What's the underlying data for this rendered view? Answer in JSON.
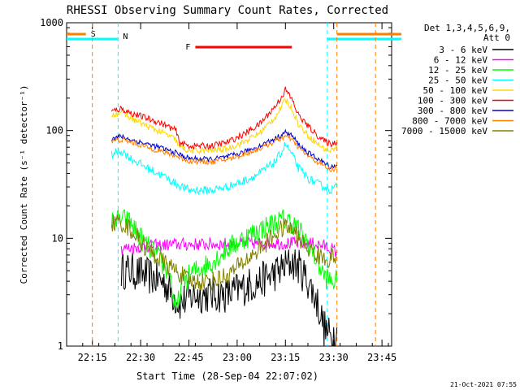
{
  "chart_data": {
    "type": "line",
    "title": "RHESSI Observing Summary Count Rates, Corrected",
    "xlabel": "Start Time (28-Sep-04 22:07:02)",
    "ylabel": "Corrected Count Rate (s⁻¹ detector⁻¹)",
    "yscale": "log",
    "ylim": [
      1,
      1000
    ],
    "xlim_minutes": [
      0,
      101
    ],
    "x_ticks": [
      "22:15",
      "22:30",
      "22:45",
      "23:00",
      "23:15",
      "23:30",
      "23:45"
    ],
    "y_ticks": [
      "1",
      "10",
      "100",
      "1000"
    ],
    "legend_header": [
      "Det 1,3,4,5,6,9,",
      "Att 0"
    ],
    "legend_position": "right",
    "footer": "21-Oct-2021 07:55",
    "flags": [
      {
        "label": "S",
        "color": "#ff7f00",
        "start": "22:07",
        "end": "22:13"
      },
      {
        "label": "N",
        "color": "#00ffff",
        "start": "22:07",
        "end": "22:23"
      },
      {
        "label": "F",
        "color": "#ff0000",
        "start": "22:47",
        "end": "23:17"
      }
    ],
    "vertical_markers": [
      {
        "time": "22:15",
        "color": "#ff7f00"
      },
      {
        "time": "22:23",
        "color": "#00ffff"
      },
      {
        "time": "23:28",
        "color": "#00ffff"
      },
      {
        "time": "23:31",
        "color": "#ff7f00"
      },
      {
        "time": "23:43",
        "color": "#ff7f00"
      }
    ],
    "series": [
      {
        "name": "3 - 6 keV",
        "color": "#000000",
        "points": [
          [
            17,
            5
          ],
          [
            20,
            5
          ],
          [
            25,
            4.5
          ],
          [
            30,
            4
          ],
          [
            35,
            2.5
          ],
          [
            40,
            3
          ],
          [
            45,
            3
          ],
          [
            50,
            3
          ],
          [
            55,
            3.5
          ],
          [
            60,
            4
          ],
          [
            65,
            4.8
          ],
          [
            68,
            5.5
          ],
          [
            70,
            6
          ],
          [
            72,
            5.5
          ],
          [
            75,
            4
          ],
          [
            78,
            2.5
          ],
          [
            80,
            1.5
          ],
          [
            82,
            1.2
          ],
          [
            84,
            1.5
          ]
        ]
      },
      {
        "name": "6 - 12 keV",
        "color": "#ff00ff",
        "points": [
          [
            17,
            8
          ],
          [
            25,
            8.5
          ],
          [
            35,
            8.8
          ],
          [
            45,
            8.8
          ],
          [
            55,
            9
          ],
          [
            65,
            9
          ],
          [
            72,
            9
          ],
          [
            76,
            9
          ],
          [
            80,
            8.5
          ],
          [
            84,
            7.5
          ]
        ]
      },
      {
        "name": "12 - 25 keV",
        "color": "#00ff00",
        "points": [
          [
            14,
            14
          ],
          [
            17,
            15
          ],
          [
            20,
            14
          ],
          [
            22,
            11
          ],
          [
            25,
            8.5
          ],
          [
            28,
            7
          ],
          [
            30,
            5.5
          ],
          [
            32,
            5
          ],
          [
            34,
            2
          ],
          [
            36,
            4
          ],
          [
            40,
            5
          ],
          [
            45,
            6
          ],
          [
            50,
            8
          ],
          [
            55,
            10
          ],
          [
            60,
            12
          ],
          [
            65,
            14
          ],
          [
            68,
            15
          ],
          [
            70,
            14
          ],
          [
            72,
            12
          ],
          [
            75,
            9
          ],
          [
            78,
            6
          ],
          [
            80,
            4.5
          ],
          [
            82,
            4
          ],
          [
            84,
            4
          ]
        ]
      },
      {
        "name": "25 - 50 keV",
        "color": "#00ffff",
        "points": [
          [
            14,
            60
          ],
          [
            17,
            65
          ],
          [
            20,
            55
          ],
          [
            25,
            45
          ],
          [
            30,
            38
          ],
          [
            34,
            32
          ],
          [
            38,
            28
          ],
          [
            45,
            28
          ],
          [
            50,
            30
          ],
          [
            55,
            34
          ],
          [
            60,
            40
          ],
          [
            65,
            52
          ],
          [
            67,
            65
          ],
          [
            68,
            75
          ],
          [
            70,
            60
          ],
          [
            72,
            45
          ],
          [
            75,
            36
          ],
          [
            78,
            32
          ],
          [
            80,
            30
          ],
          [
            82,
            28
          ],
          [
            84,
            30
          ]
        ]
      },
      {
        "name": "50 - 100 keV",
        "color": "#ffd700",
        "points": [
          [
            14,
            140
          ],
          [
            17,
            150
          ],
          [
            20,
            130
          ],
          [
            25,
            110
          ],
          [
            30,
            95
          ],
          [
            34,
            82
          ],
          [
            35,
            70
          ],
          [
            38,
            65
          ],
          [
            45,
            65
          ],
          [
            50,
            68
          ],
          [
            55,
            78
          ],
          [
            60,
            95
          ],
          [
            65,
            135
          ],
          [
            67,
            170
          ],
          [
            68,
            195
          ],
          [
            70,
            160
          ],
          [
            72,
            115
          ],
          [
            75,
            90
          ],
          [
            78,
            75
          ],
          [
            80,
            68
          ],
          [
            82,
            65
          ],
          [
            84,
            70
          ]
        ]
      },
      {
        "name": "100 - 300 keV",
        "color": "#ff0000",
        "points": [
          [
            14,
            150
          ],
          [
            17,
            160
          ],
          [
            20,
            145
          ],
          [
            25,
            130
          ],
          [
            30,
            115
          ],
          [
            34,
            100
          ],
          [
            35,
            78
          ],
          [
            38,
            72
          ],
          [
            45,
            72
          ],
          [
            50,
            78
          ],
          [
            55,
            92
          ],
          [
            60,
            115
          ],
          [
            65,
            170
          ],
          [
            67,
            210
          ],
          [
            68,
            240
          ],
          [
            70,
            195
          ],
          [
            72,
            140
          ],
          [
            75,
            110
          ],
          [
            78,
            90
          ],
          [
            80,
            80
          ],
          [
            82,
            75
          ],
          [
            84,
            78
          ]
        ]
      },
      {
        "name": "300 - 800 keV",
        "color": "#0000cc",
        "points": [
          [
            14,
            85
          ],
          [
            17,
            88
          ],
          [
            20,
            82
          ],
          [
            25,
            75
          ],
          [
            30,
            68
          ],
          [
            34,
            62
          ],
          [
            38,
            55
          ],
          [
            45,
            54
          ],
          [
            50,
            57
          ],
          [
            55,
            63
          ],
          [
            60,
            72
          ],
          [
            65,
            85
          ],
          [
            67,
            92
          ],
          [
            68,
            96
          ],
          [
            70,
            90
          ],
          [
            72,
            75
          ],
          [
            75,
            62
          ],
          [
            78,
            55
          ],
          [
            80,
            50
          ],
          [
            82,
            46
          ],
          [
            84,
            48
          ]
        ]
      },
      {
        "name": "800 - 7000 keV",
        "color": "#ff7f00",
        "points": [
          [
            14,
            80
          ],
          [
            17,
            82
          ],
          [
            20,
            78
          ],
          [
            25,
            70
          ],
          [
            30,
            63
          ],
          [
            34,
            58
          ],
          [
            38,
            52
          ],
          [
            45,
            51
          ],
          [
            50,
            54
          ],
          [
            55,
            60
          ],
          [
            60,
            68
          ],
          [
            65,
            80
          ],
          [
            67,
            86
          ],
          [
            68,
            88
          ],
          [
            70,
            82
          ],
          [
            72,
            70
          ],
          [
            75,
            58
          ],
          [
            78,
            51
          ],
          [
            80,
            47
          ],
          [
            82,
            43
          ],
          [
            84,
            45
          ]
        ]
      },
      {
        "name": "7000 - 15000 keV",
        "color": "#808000",
        "points": [
          [
            14,
            14
          ],
          [
            17,
            14
          ],
          [
            20,
            12
          ],
          [
            25,
            8
          ],
          [
            30,
            6
          ],
          [
            34,
            5
          ],
          [
            38,
            4
          ],
          [
            45,
            4
          ],
          [
            50,
            4.5
          ],
          [
            55,
            6
          ],
          [
            60,
            8
          ],
          [
            65,
            11
          ],
          [
            68,
            13
          ],
          [
            70,
            12
          ],
          [
            72,
            10
          ],
          [
            75,
            8
          ],
          [
            78,
            7
          ],
          [
            80,
            6.5
          ],
          [
            82,
            6.5
          ],
          [
            84,
            7
          ]
        ]
      }
    ]
  }
}
